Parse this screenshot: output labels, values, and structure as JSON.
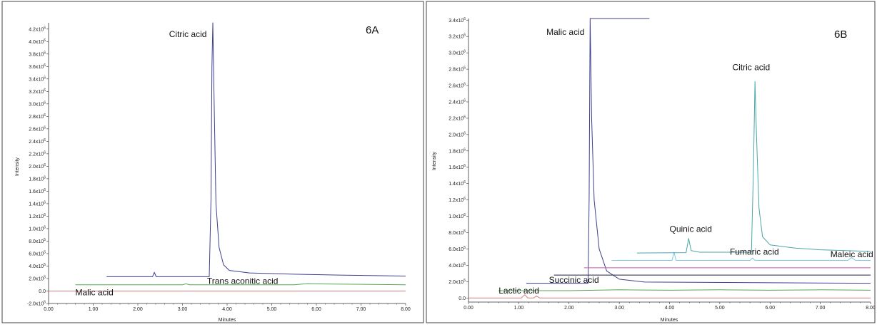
{
  "chart_data": [
    {
      "type": "line",
      "panel_label": "6A",
      "xlabel": "Minutes",
      "ylabel": "Intensity",
      "xlim": [
        0,
        8
      ],
      "ylim": [
        -200000,
        4300000
      ],
      "x_ticks": [
        {
          "value": 0,
          "label": "0.00"
        },
        {
          "value": 1,
          "label": "1.00"
        },
        {
          "value": 2,
          "label": "2.00"
        },
        {
          "value": 3,
          "label": "3.00"
        },
        {
          "value": 4,
          "label": "4.00"
        },
        {
          "value": 5,
          "label": "5.00"
        },
        {
          "value": 6,
          "label": "6.00"
        },
        {
          "value": 7,
          "label": "7.00"
        },
        {
          "value": 8,
          "label": "8.00"
        }
      ],
      "y_ticks": [
        {
          "value": -200000,
          "m": "-2.0",
          "e": "5"
        },
        {
          "value": 0,
          "m": "0.0",
          "e": ""
        },
        {
          "value": 200000,
          "m": "2.0",
          "e": "5"
        },
        {
          "value": 400000,
          "m": "4.0",
          "e": "5"
        },
        {
          "value": 600000,
          "m": "6.0",
          "e": "5"
        },
        {
          "value": 800000,
          "m": "8.0",
          "e": "5"
        },
        {
          "value": 1000000,
          "m": "1.0",
          "e": "6"
        },
        {
          "value": 1200000,
          "m": "1.2",
          "e": "6"
        },
        {
          "value": 1400000,
          "m": "1.4",
          "e": "6"
        },
        {
          "value": 1600000,
          "m": "1.6",
          "e": "6"
        },
        {
          "value": 1800000,
          "m": "1.8",
          "e": "6"
        },
        {
          "value": 2000000,
          "m": "2.0",
          "e": "6"
        },
        {
          "value": 2200000,
          "m": "2.2",
          "e": "6"
        },
        {
          "value": 2400000,
          "m": "2.4",
          "e": "6"
        },
        {
          "value": 2600000,
          "m": "2.6",
          "e": "6"
        },
        {
          "value": 2800000,
          "m": "2.8",
          "e": "6"
        },
        {
          "value": 3000000,
          "m": "3.0",
          "e": "6"
        },
        {
          "value": 3200000,
          "m": "3.2",
          "e": "6"
        },
        {
          "value": 3400000,
          "m": "3.4",
          "e": "6"
        },
        {
          "value": 3600000,
          "m": "3.6",
          "e": "6"
        },
        {
          "value": 3800000,
          "m": "3.8",
          "e": "6"
        },
        {
          "value": 4000000,
          "m": "4.0",
          "e": "6"
        },
        {
          "value": 4200000,
          "m": "4.2",
          "e": "6"
        }
      ],
      "tick_multiplier": "x10",
      "series": [
        {
          "color": "#d97a7a",
          "points": [
            [
              0,
              0
            ],
            [
              8,
              0
            ]
          ]
        },
        {
          "color": "#55a84f",
          "points": [
            [
              0.6,
              100000
            ],
            [
              3.0,
              100000
            ],
            [
              3.08,
              115000
            ],
            [
              3.16,
              100000
            ],
            [
              5.5,
              100000
            ],
            [
              5.8,
              118000
            ],
            [
              6.2,
              112000
            ],
            [
              8.0,
              100000
            ]
          ]
        },
        {
          "color": "#3d3f8f",
          "points": [
            [
              1.3,
              230000
            ],
            [
              2.33,
              230000
            ],
            [
              2.37,
              300000
            ],
            [
              2.41,
              230000
            ],
            [
              3.6,
              230000
            ],
            [
              3.64,
              1500000
            ],
            [
              3.66,
              3600000
            ],
            [
              3.68,
              4300000
            ],
            [
              3.71,
              3000000
            ],
            [
              3.75,
              1400000
            ],
            [
              3.82,
              700000
            ],
            [
              3.92,
              420000
            ],
            [
              4.05,
              330000
            ],
            [
              4.5,
              290000
            ],
            [
              5.5,
              270000
            ],
            [
              6.5,
              255000
            ],
            [
              8.0,
              240000
            ]
          ]
        }
      ],
      "annotations": [
        {
          "text": "Citric acid",
          "x": 2.7,
          "y": 4070000
        },
        {
          "text": "Trans aconitic acid",
          "x": 3.55,
          "y": 115000
        },
        {
          "text": "Malic acid",
          "x": 0.6,
          "y": -70000
        }
      ]
    },
    {
      "type": "line",
      "panel_label": "6B",
      "xlabel": "Minutes",
      "ylabel": "Intensity",
      "xlim": [
        0,
        8
      ],
      "ylim": [
        -50000,
        3420000
      ],
      "x_ticks": [
        {
          "value": 0,
          "label": "0.00"
        },
        {
          "value": 1,
          "label": "1.00"
        },
        {
          "value": 2,
          "label": "2.00"
        },
        {
          "value": 3,
          "label": "3.00"
        },
        {
          "value": 4,
          "label": "4.00"
        },
        {
          "value": 5,
          "label": "5.00"
        },
        {
          "value": 6,
          "label": "6.00"
        },
        {
          "value": 7,
          "label": "7.00"
        },
        {
          "value": 8,
          "label": "8.00"
        }
      ],
      "y_ticks": [
        {
          "value": 0,
          "m": "0.0",
          "e": ""
        },
        {
          "value": 200000,
          "m": "2.0",
          "e": "5"
        },
        {
          "value": 400000,
          "m": "4.0",
          "e": "5"
        },
        {
          "value": 600000,
          "m": "6.0",
          "e": "5"
        },
        {
          "value": 800000,
          "m": "8.0",
          "e": "5"
        },
        {
          "value": 1000000,
          "m": "1.0",
          "e": "6"
        },
        {
          "value": 1200000,
          "m": "1.2",
          "e": "6"
        },
        {
          "value": 1400000,
          "m": "1.4",
          "e": "6"
        },
        {
          "value": 1600000,
          "m": "1.6",
          "e": "6"
        },
        {
          "value": 1800000,
          "m": "1.8",
          "e": "6"
        },
        {
          "value": 2000000,
          "m": "2.0",
          "e": "6"
        },
        {
          "value": 2200000,
          "m": "2.2",
          "e": "6"
        },
        {
          "value": 2400000,
          "m": "2.4",
          "e": "6"
        },
        {
          "value": 2600000,
          "m": "2.6",
          "e": "6"
        },
        {
          "value": 2800000,
          "m": "2.8",
          "e": "6"
        },
        {
          "value": 3000000,
          "m": "3.0",
          "e": "6"
        },
        {
          "value": 3200000,
          "m": "3.2",
          "e": "6"
        },
        {
          "value": 3400000,
          "m": "3.4",
          "e": "6"
        }
      ],
      "tick_multiplier": "x10",
      "series": [
        {
          "color": "#d97a7a",
          "points": [
            [
              0,
              0
            ],
            [
              1.05,
              0
            ],
            [
              1.12,
              40000
            ],
            [
              1.18,
              0
            ],
            [
              1.3,
              0
            ],
            [
              1.35,
              25000
            ],
            [
              1.42,
              0
            ],
            [
              8,
              0
            ]
          ]
        },
        {
          "color": "#55a84f",
          "points": [
            [
              0.6,
              90000
            ],
            [
              2.0,
              90000
            ],
            [
              3.0,
              100000
            ],
            [
              4.0,
              95000
            ],
            [
              5.0,
              100000
            ],
            [
              6.0,
              95000
            ],
            [
              7.0,
              100000
            ],
            [
              8.0,
              95000
            ]
          ]
        },
        {
          "color": "#3d3f8f",
          "points": [
            [
              1.15,
              180000
            ],
            [
              2.38,
              180000
            ],
            [
              2.4,
              1200000
            ],
            [
              2.42,
              3420000
            ],
            [
              2.45,
              2200000
            ],
            [
              2.5,
              1200000
            ],
            [
              2.6,
              600000
            ],
            [
              2.75,
              330000
            ],
            [
              3.0,
              230000
            ],
            [
              3.5,
              195000
            ],
            [
              8.0,
              180000
            ]
          ]
        },
        {
          "color": "#222244",
          "points": [
            [
              1.7,
              280000
            ],
            [
              8,
              280000
            ]
          ]
        },
        {
          "color": "#c85ab0",
          "points": [
            [
              2.3,
              370000
            ],
            [
              8,
              370000
            ]
          ]
        },
        {
          "color": "#7cc9e3",
          "points": [
            [
              2.85,
              460000
            ],
            [
              4.05,
              460000
            ],
            [
              4.09,
              560000
            ],
            [
              4.13,
              460000
            ],
            [
              5.6,
              460000
            ],
            [
              5.65,
              490000
            ],
            [
              5.7,
              460000
            ],
            [
              7.55,
              460000
            ],
            [
              7.62,
              495000
            ],
            [
              7.7,
              460000
            ],
            [
              8,
              460000
            ]
          ]
        },
        {
          "color": "#4aa7a7",
          "points": [
            [
              3.35,
              550000
            ],
            [
              4.33,
              555000
            ],
            [
              4.38,
              730000
            ],
            [
              4.43,
              580000
            ],
            [
              4.6,
              560000
            ],
            [
              5.63,
              560000
            ],
            [
              5.67,
              1600000
            ],
            [
              5.7,
              2650000
            ],
            [
              5.73,
              2000000
            ],
            [
              5.78,
              1100000
            ],
            [
              5.85,
              750000
            ],
            [
              6.0,
              650000
            ],
            [
              6.5,
              610000
            ],
            [
              7.0,
              590000
            ],
            [
              8.0,
              570000
            ]
          ]
        },
        {
          "color": "#3d3f8f",
          "points": [
            [
              2.42,
              3420000
            ],
            [
              3.6,
              3420000
            ]
          ]
        }
      ],
      "annotations": [
        {
          "text": "Malic acid",
          "x": 1.55,
          "y": 3220000
        },
        {
          "text": "Citric acid",
          "x": 5.25,
          "y": 2790000
        },
        {
          "text": "Quinic acid",
          "x": 4.0,
          "y": 810000
        },
        {
          "text": "Fumaric acid",
          "x": 5.2,
          "y": 530000
        },
        {
          "text": "Maleic acid",
          "x": 7.2,
          "y": 500000
        },
        {
          "text": "Succinic acid",
          "x": 1.6,
          "y": 185000
        },
        {
          "text": "Lactic acid",
          "x": 0.6,
          "y": 55000
        }
      ]
    }
  ]
}
